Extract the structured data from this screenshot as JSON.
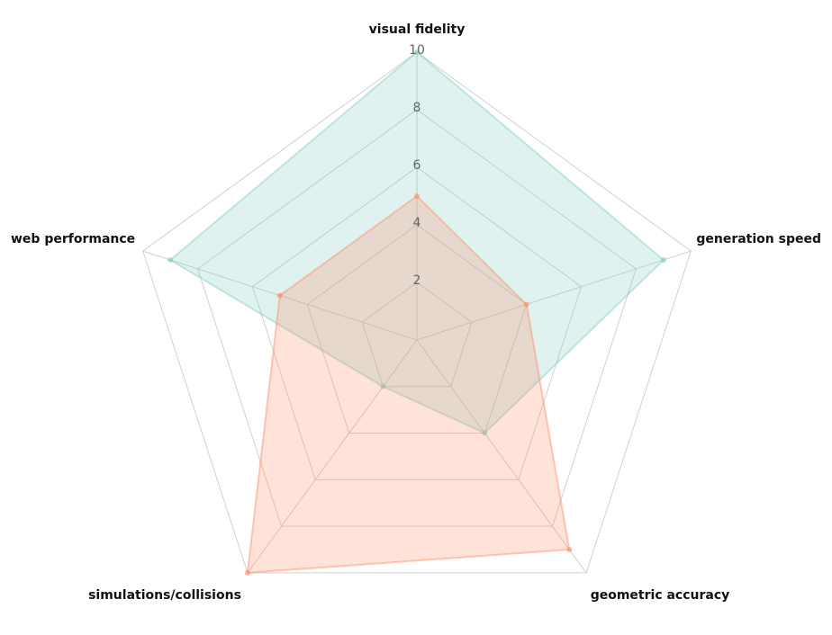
{
  "chart_data": {
    "type": "radar",
    "axes": [
      "visual fidelity",
      "generation speed",
      "geometric accuracy",
      "simulations/collisions",
      "web performance"
    ],
    "range": [
      0,
      10
    ],
    "ticks": [
      2,
      4,
      6,
      8,
      10
    ],
    "grid": true,
    "legend": "none",
    "series": [
      {
        "values": [
          10,
          9,
          4,
          2,
          9
        ],
        "color": "#80cbc4"
      },
      {
        "values": [
          5,
          4,
          9,
          10,
          5
        ],
        "color": "#ff8a65"
      }
    ]
  }
}
